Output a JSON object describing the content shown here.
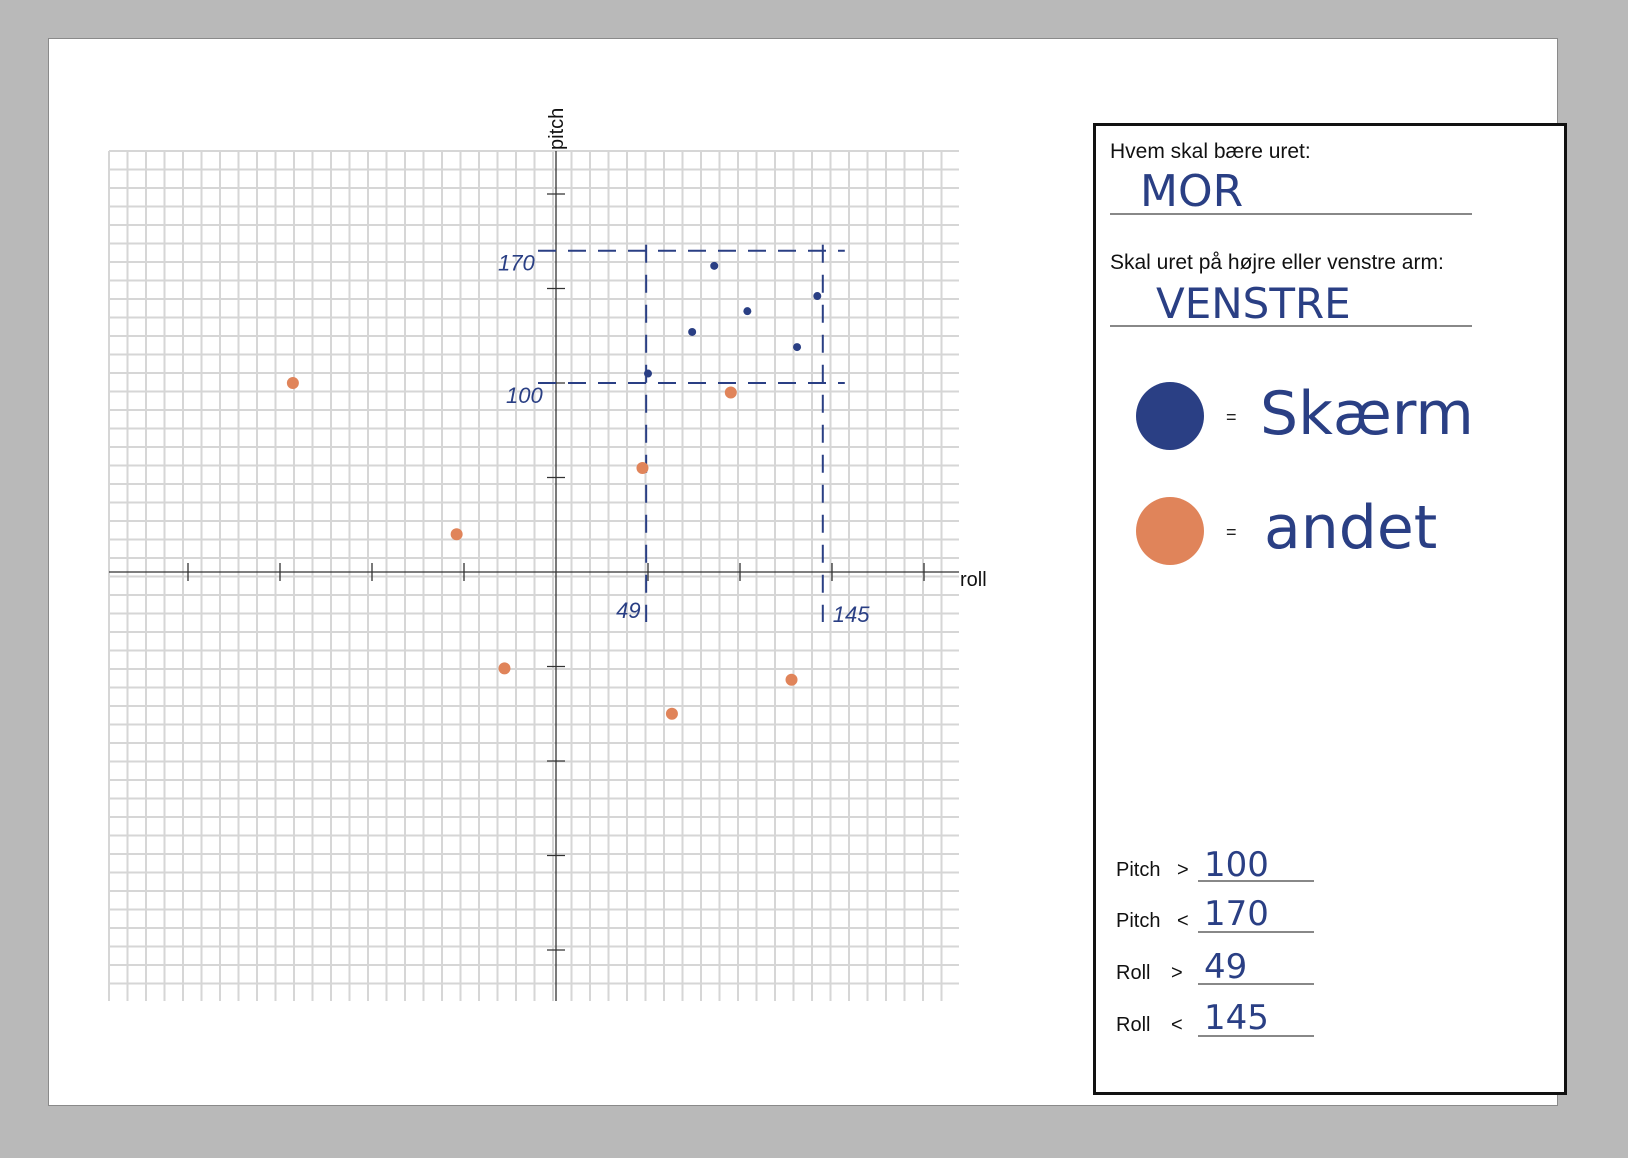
{
  "chart_data": {
    "type": "scatter",
    "xlabel": "roll",
    "ylabel": "pitch",
    "xlim": [
      -230,
      230
    ],
    "ylim": [
      -230,
      220
    ],
    "x_ticks": [
      -200,
      -150,
      -100,
      -50,
      50,
      100,
      150,
      200
    ],
    "y_ticks": [
      -200,
      -150,
      -100,
      -50,
      50,
      100,
      150,
      200
    ],
    "thresholds": {
      "pitch_low": {
        "value": 100,
        "label": "100"
      },
      "pitch_high": {
        "value": 170,
        "label": "170"
      },
      "roll_low": {
        "value": 49,
        "label": "49"
      },
      "roll_high": {
        "value": 145,
        "label": "145"
      }
    },
    "series": [
      {
        "name": "Skærm",
        "color": "#2a3f84",
        "points": [
          {
            "x": 50,
            "y": 105
          },
          {
            "x": 74,
            "y": 127
          },
          {
            "x": 86,
            "y": 162
          },
          {
            "x": 104,
            "y": 138
          },
          {
            "x": 131,
            "y": 119
          },
          {
            "x": 142,
            "y": 146
          }
        ]
      },
      {
        "name": "andet",
        "color": "#e0845a",
        "points": [
          {
            "x": -143,
            "y": 100
          },
          {
            "x": -54,
            "y": 20
          },
          {
            "x": -28,
            "y": -51
          },
          {
            "x": 47,
            "y": 55
          },
          {
            "x": 95,
            "y": 95
          },
          {
            "x": 63,
            "y": -75
          },
          {
            "x": 128,
            "y": -57
          }
        ]
      }
    ]
  },
  "form": {
    "who_label": "Hvem skal bære uret:",
    "who_value": "MOR",
    "arm_label": "Skal uret på højre eller venstre arm:",
    "arm_value": "VENSTRE",
    "legend": [
      {
        "color": "#2a3f84",
        "eq": "=",
        "label": "Skærm"
      },
      {
        "color": "#e0845a",
        "eq": "=",
        "label": "andet"
      }
    ],
    "rules": [
      {
        "label": "Pitch",
        "op": ">",
        "value": "100"
      },
      {
        "label": "Pitch",
        "op": "<",
        "value": "170"
      },
      {
        "label": "Roll",
        "op": ">",
        "value": "49"
      },
      {
        "label": "Roll",
        "op": "<",
        "value": "145"
      }
    ]
  }
}
